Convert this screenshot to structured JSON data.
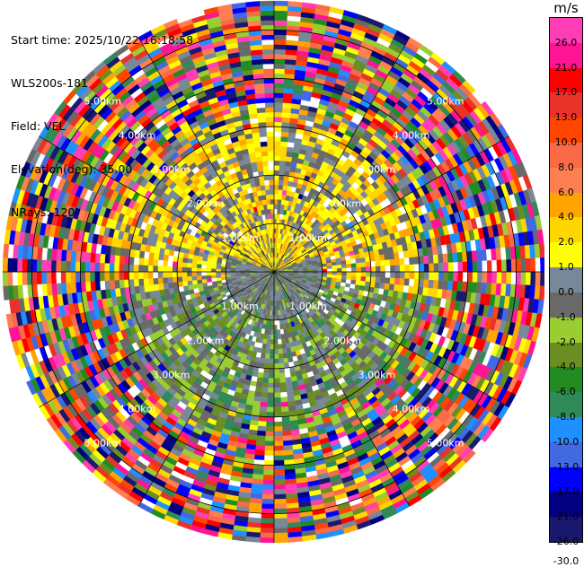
{
  "info": {
    "start_time": "Start time: 2025/10/22 16:18:58",
    "station": "WLS200s-181",
    "field": "Field: VEL",
    "elevation": "Elevation(deg): 35.00",
    "nrays": "NRays: 120"
  },
  "chart_data": {
    "type": "heatmap",
    "projection": "polar",
    "field": "VEL",
    "unit": "m/s",
    "nrays": 120,
    "range_km_max": 5.6,
    "range_rings_km": [
      1.0,
      2.0,
      3.0,
      4.0,
      5.0
    ],
    "ring_labels": [
      "1.00km",
      "2.00km",
      "3.00km",
      "4.00km",
      "5.00km"
    ],
    "colorbar": {
      "ticks": [
        "26.0",
        "21.0",
        "17.0",
        "13.0",
        "10.0",
        "8.0",
        "6.0",
        "4.0",
        "2.0",
        "1.0",
        "0.0",
        "-1.0",
        "-2.0",
        "-4.0",
        "-6.0",
        "-8.0",
        "-10.0",
        "-13.0",
        "-17.0",
        "-21.0",
        "-26.0",
        "-30.0"
      ],
      "colors": [
        "#ff3eb5",
        "#ff1493",
        "#ff0000",
        "#e8322a",
        "#ff4500",
        "#fa6a47",
        "#ff7f50",
        "#ffa500",
        "#ffd700",
        "#ffff00",
        "#778899",
        "#696969",
        "#9acd32",
        "#6b8e23",
        "#228b22",
        "#2e8b57",
        "#1e90ff",
        "#4169e1",
        "#0000ff",
        "#000080",
        "#191970"
      ]
    },
    "regions": [
      {
        "range_km": [
          0.0,
          1.0
        ],
        "dominant": "0.0 to 1.0 (gray) with yellow patch north"
      },
      {
        "range_km": [
          1.0,
          3.0
        ],
        "dominant": "north half yellow (1 to 4 m/s), south half green (-1 to -4 m/s), gray scattered"
      },
      {
        "range_km": [
          3.0,
          5.6
        ],
        "dominant": "noise, mixed random colors"
      }
    ]
  }
}
